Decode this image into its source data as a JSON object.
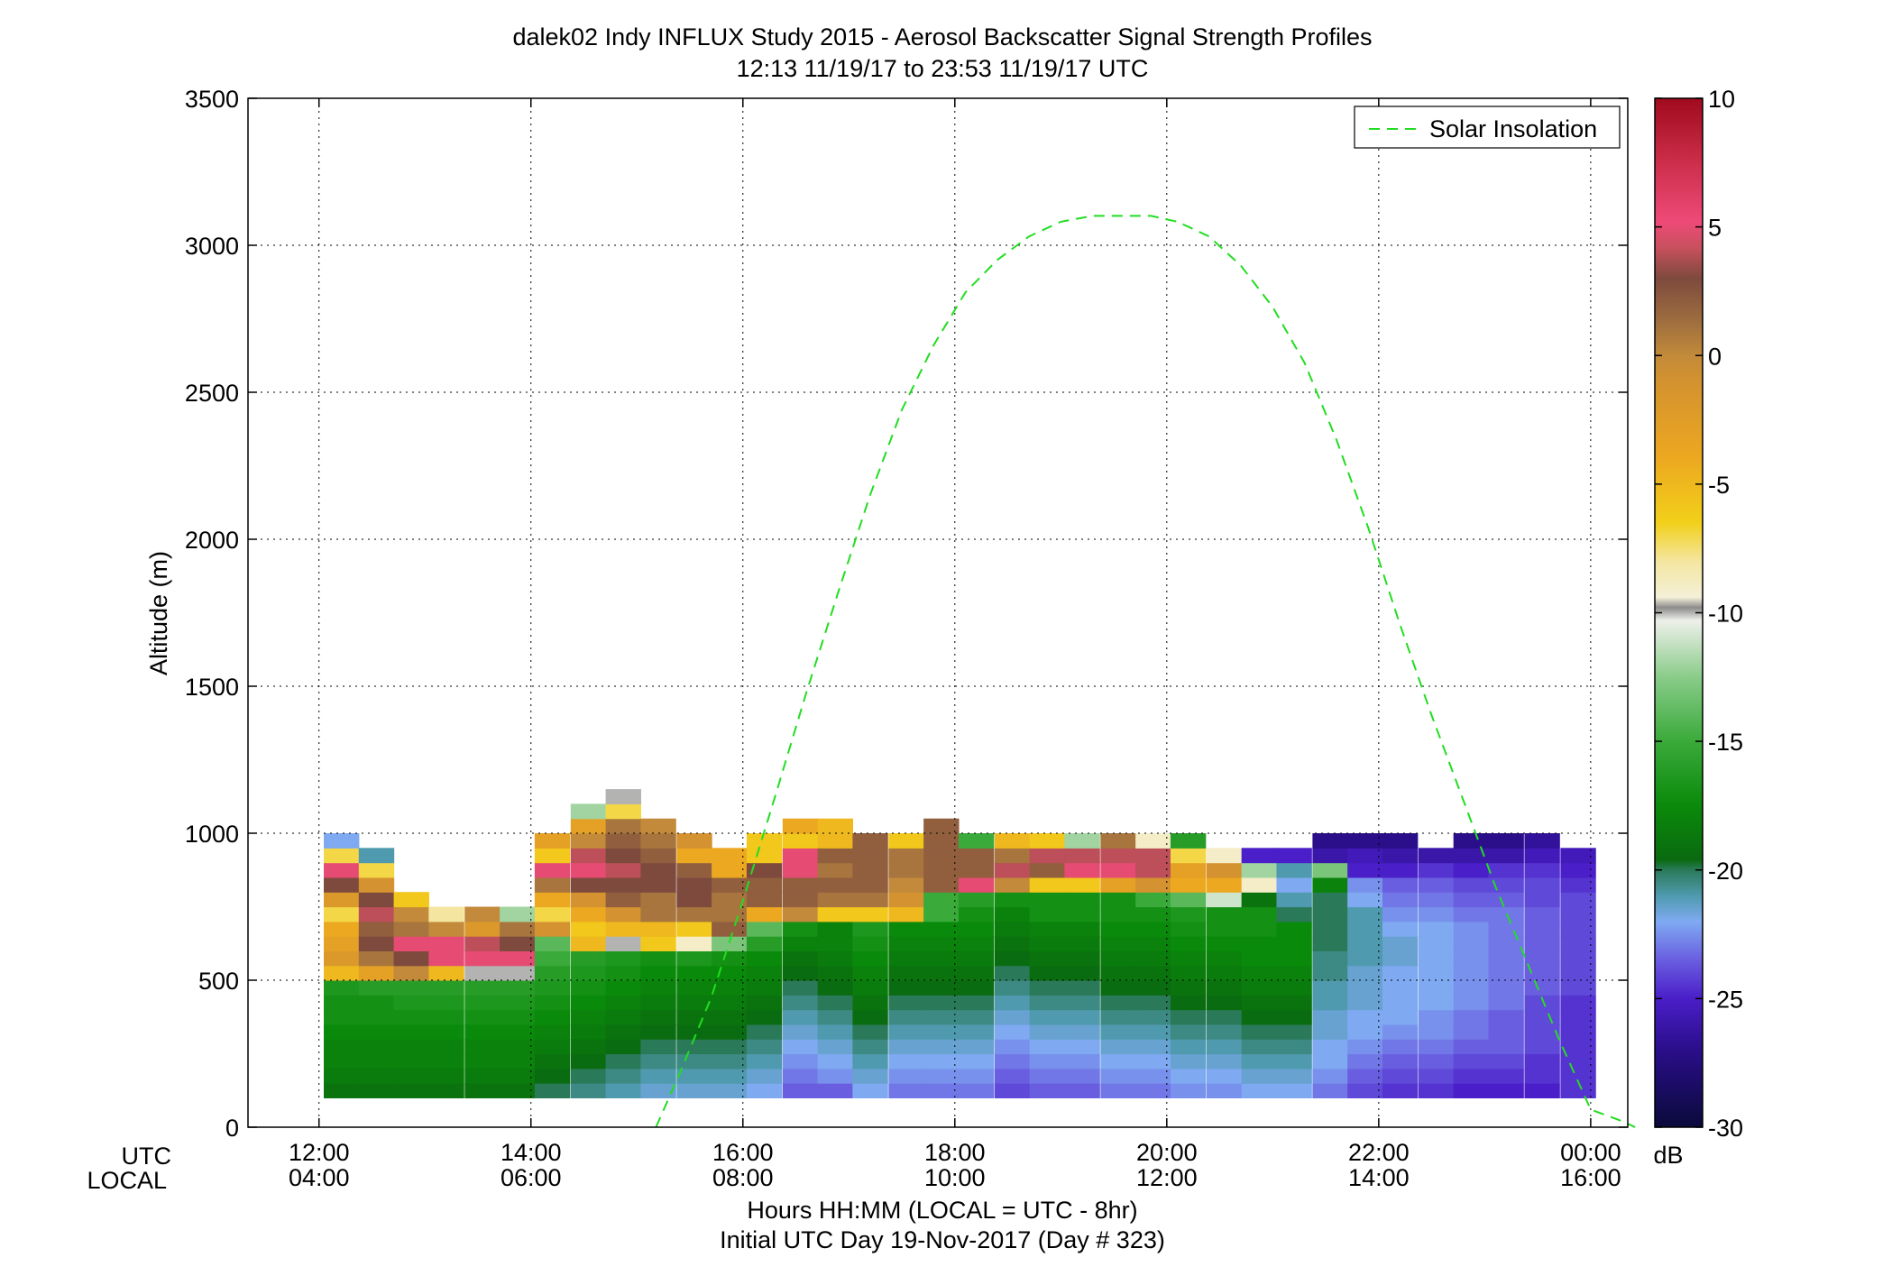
{
  "chart_data": {
    "type": "heatmap",
    "title": "dalek02 Indy INFLUX Study 2015 - Aerosol Backscatter Signal Strength Profiles",
    "subtitle": "12:13 11/19/17 to 23:53 11/19/17  UTC",
    "ylabel": "Altitude (m)",
    "xlabel": "Hours HH:MM  (LOCAL = UTC - 8hr)",
    "xlabel2": "Initial UTC Day 19-Nov-2017 (Day # 323)",
    "x_row_labels": [
      "UTC",
      "LOCAL"
    ],
    "grid": true,
    "x_range_hours": [
      11.33,
      24.35
    ],
    "ylim": [
      0,
      3500
    ],
    "y_ticks": [
      0,
      500,
      1000,
      1500,
      2000,
      2500,
      3000,
      3500
    ],
    "x_ticks": [
      {
        "hour": 12,
        "utc": "12:00",
        "local": "04:00"
      },
      {
        "hour": 14,
        "utc": "14:00",
        "local": "06:00"
      },
      {
        "hour": 16,
        "utc": "16:00",
        "local": "08:00"
      },
      {
        "hour": 18,
        "utc": "18:00",
        "local": "10:00"
      },
      {
        "hour": 20,
        "utc": "20:00",
        "local": "12:00"
      },
      {
        "hour": 22,
        "utc": "22:00",
        "local": "14:00"
      },
      {
        "hour": 24,
        "utc": "00:00",
        "local": "16:00"
      }
    ],
    "colorbar": {
      "label": "dB",
      "range": [
        -30,
        10
      ],
      "ticks": [
        -30,
        -25,
        -20,
        -15,
        -10,
        -5,
        0,
        5,
        10
      ],
      "tick_labels": [
        "-30",
        "-25",
        "-20",
        "-15",
        "-10",
        "-5",
        "0",
        "5",
        "10"
      ],
      "stops": [
        [
          -30,
          "#0a0a3a"
        ],
        [
          -27,
          "#2a0e8a"
        ],
        [
          -25,
          "#4a1ec8"
        ],
        [
          -23.5,
          "#6a5ee0"
        ],
        [
          -22,
          "#7faaf2"
        ],
        [
          -21,
          "#4f9aae"
        ],
        [
          -20,
          "#2a7a5a"
        ],
        [
          -19.6,
          "#0a6a10"
        ],
        [
          -17.5,
          "#0a8a0a"
        ],
        [
          -15,
          "#3aaa3a"
        ],
        [
          -12.5,
          "#8acc8a"
        ],
        [
          -10.3,
          "#eef0ea"
        ],
        [
          -9.8,
          "#8c8c8c"
        ],
        [
          -9.4,
          "#f4f0d8"
        ],
        [
          -8,
          "#f4e6a0"
        ],
        [
          -6.5,
          "#f2d01a"
        ],
        [
          -4,
          "#eca820"
        ],
        [
          -1,
          "#d49230"
        ],
        [
          0,
          "#c28a3a"
        ],
        [
          1.5,
          "#9a6a3e"
        ],
        [
          3,
          "#7e4a3e"
        ],
        [
          4.2,
          "#c8505e"
        ],
        [
          5.2,
          "#ee4a78"
        ],
        [
          7.5,
          "#cc2e4a"
        ],
        [
          10,
          "#a00a1e"
        ]
      ]
    },
    "time_bins_hours": [
      12.21,
      12.54,
      12.87,
      13.2,
      13.54,
      13.87,
      14.2,
      14.54,
      14.87,
      15.2,
      15.54,
      15.87,
      16.2,
      16.54,
      16.87,
      17.2,
      17.54,
      17.87,
      18.2,
      18.54,
      18.87,
      19.2,
      19.54,
      19.87,
      20.2,
      20.54,
      20.87,
      21.2,
      21.54,
      21.87,
      22.2,
      22.54,
      22.87,
      23.2,
      23.54,
      23.88
    ],
    "altitude_bin_bottoms_m": [
      100,
      150,
      200,
      250,
      300,
      350,
      400,
      450,
      500,
      550,
      600,
      650,
      700,
      750,
      800,
      850,
      900,
      950,
      1000,
      1050,
      1100
    ],
    "altitude_bin_height_m": 50,
    "signal_db": [
      [
        -19,
        -18.5,
        -18,
        -18,
        -17.5,
        -17,
        -17,
        -16.5,
        -5,
        -2,
        -3,
        -4,
        -7,
        -2,
        3,
        5,
        -7,
        -22,
        null,
        null,
        null
      ],
      [
        -19,
        -18.5,
        -18,
        -18,
        -17.5,
        -17,
        -17,
        -16,
        -3,
        1,
        3,
        2,
        4,
        3,
        -1,
        -7,
        -21,
        null,
        null,
        null,
        null
      ],
      [
        -19,
        -18.5,
        -18,
        -18,
        -17.5,
        -17,
        -16.5,
        -16,
        0,
        3,
        5,
        1,
        0,
        -6,
        null,
        null,
        null,
        null,
        null,
        null,
        null
      ],
      [
        -19,
        -18.5,
        -18,
        -18,
        -17.5,
        -17,
        -16.5,
        -16,
        -5,
        5,
        5,
        0,
        -8,
        null,
        null,
        null,
        null,
        null,
        null,
        null,
        null
      ],
      [
        -19,
        -18.5,
        -18,
        -18,
        -17.5,
        -17,
        -16.5,
        -16,
        -10,
        5,
        4,
        -2,
        0,
        null,
        null,
        null,
        null,
        null,
        null,
        null,
        null
      ],
      [
        -19,
        -18.5,
        -18,
        -18,
        -17.5,
        -17,
        -16.5,
        -16,
        -10,
        5,
        3,
        1,
        -12,
        null,
        null,
        null,
        null,
        null,
        null,
        null,
        null
      ],
      [
        -20,
        -19.5,
        -19,
        -18.5,
        -18,
        -17.5,
        -17,
        -16.5,
        -16,
        -15,
        -14,
        -1,
        -7,
        -4,
        1,
        5,
        -6,
        -3,
        null,
        null,
        null
      ],
      [
        -20.5,
        -20,
        -19.5,
        -19,
        -18.5,
        -18,
        -17.5,
        -17,
        -16.5,
        -16,
        -5,
        -6,
        -4,
        -1,
        3,
        5,
        4,
        0,
        -3,
        -12,
        null
      ],
      [
        -21,
        -20.5,
        -20,
        -19.5,
        -19,
        -18.5,
        -18,
        -17.5,
        -17,
        -16.5,
        -10,
        -5,
        -1,
        2,
        3,
        4,
        3,
        2,
        1,
        -7,
        -10
      ],
      [
        -21.5,
        -21,
        -20.5,
        -20,
        -19.5,
        -19,
        -18.5,
        -18,
        -17.5,
        -17,
        -6,
        -5,
        1,
        1,
        3,
        3,
        2,
        1,
        0,
        null,
        null
      ],
      [
        -21.5,
        -21,
        -20.5,
        -20,
        -19.5,
        -19,
        -18.5,
        -18,
        -17.5,
        -16.5,
        -9,
        -6,
        1,
        3,
        3,
        2,
        -4,
        -1,
        null,
        null,
        null
      ],
      [
        -21.5,
        -21,
        -20.5,
        -20,
        -19.5,
        -19,
        -18.5,
        -18,
        -17.5,
        -17,
        -13,
        2,
        1,
        1,
        2,
        -4,
        -4,
        null,
        null,
        null,
        null
      ],
      [
        -22,
        -21.5,
        -21,
        -20.5,
        -20,
        -19.5,
        -19,
        -18.5,
        -18,
        -17.5,
        -16,
        -14,
        -4,
        2,
        2,
        3,
        -6,
        -6,
        null,
        null,
        null
      ],
      [
        -23.5,
        -23,
        -22.5,
        -22,
        -21.5,
        -21,
        -20.5,
        -20,
        -19.5,
        -19,
        -18,
        -17,
        0,
        2,
        2,
        5,
        5,
        -6,
        -4,
        null,
        null
      ],
      [
        -23.5,
        -22.5,
        -22,
        -21.5,
        -21,
        -20.5,
        -20,
        -19.5,
        -19,
        -18.5,
        -18,
        -18,
        -6,
        1,
        2,
        1,
        2,
        -5,
        -5,
        null,
        null
      ],
      [
        -22,
        -21.5,
        -21,
        -20.5,
        -20,
        -19.5,
        -19,
        -18.5,
        -18,
        -17.5,
        -17,
        -16.5,
        -6,
        1,
        2,
        2,
        2,
        2,
        null,
        null,
        null
      ],
      [
        -23,
        -22.5,
        -22,
        -21.5,
        -21,
        -20.5,
        -20,
        -19.5,
        -19,
        -18.5,
        -18,
        -17.5,
        -5,
        -1,
        0,
        1,
        1,
        -6,
        null,
        null,
        null
      ],
      [
        -23,
        -22.5,
        -22,
        -21.5,
        -21,
        -20.5,
        -20,
        -19.5,
        -19,
        -18.5,
        -18,
        -17.5,
        -15,
        -15,
        2,
        2,
        2,
        2,
        2,
        null,
        null
      ],
      [
        -23,
        -22.5,
        -22,
        -21.5,
        -21,
        -20.5,
        -20,
        -19.5,
        -19,
        -18.5,
        -18,
        -17.5,
        -17,
        -16,
        5,
        2,
        2,
        -15,
        null,
        null,
        null
      ],
      [
        -24,
        -23.5,
        -23,
        -22.5,
        -22,
        -21.5,
        -21,
        -20.5,
        -20,
        -19.5,
        -19,
        -18.5,
        -18,
        -17,
        0,
        4,
        1,
        -5,
        null,
        null,
        null
      ],
      [
        -23.5,
        -23,
        -22.5,
        -22,
        -21.5,
        -21,
        -20.5,
        -20,
        -19.5,
        -19,
        -18.5,
        -18,
        -17,
        -17,
        -6,
        2,
        4,
        -6,
        null,
        null,
        null
      ],
      [
        -23.5,
        -23,
        -22.5,
        -22,
        -21.5,
        -21,
        -20.5,
        -20,
        -19.5,
        -19,
        -18.5,
        -18,
        -17,
        -17,
        -6,
        5,
        4,
        -12,
        null,
        null,
        null
      ],
      [
        -23,
        -22.5,
        -22,
        -21.5,
        -21,
        -20.5,
        -20,
        -19.5,
        -19,
        -18.5,
        -18,
        -17.5,
        -17,
        -17,
        -3,
        5,
        4,
        1,
        null,
        null,
        null
      ],
      [
        -23,
        -22.5,
        -22,
        -21.5,
        -21,
        -20.5,
        -20,
        -19.5,
        -19,
        -18.5,
        -18,
        -17.5,
        -17,
        -15,
        -1,
        4,
        4,
        -9,
        null,
        null,
        null
      ],
      [
        -22.5,
        -22,
        -21.5,
        -21,
        -20.5,
        -20,
        -19.5,
        -19,
        -18.5,
        -18,
        -17.5,
        -17,
        -16.5,
        -14,
        -4,
        -3,
        -7,
        -16,
        null,
        null,
        null
      ],
      [
        -22.5,
        -22,
        -21.5,
        -21,
        -20.5,
        -20,
        -19.5,
        -19,
        -18.5,
        -18,
        -17.5,
        -17,
        -17,
        -11,
        -4,
        -1,
        -9,
        null,
        null,
        null,
        null
      ],
      [
        -22,
        -21.5,
        -21,
        -20.5,
        -20,
        -19.5,
        -19,
        -18.5,
        -18,
        -17.5,
        -17.5,
        -17,
        -17,
        -19,
        -9,
        -12,
        -25,
        null,
        null,
        null,
        null
      ],
      [
        -22,
        -21.5,
        -21,
        -20.5,
        -20,
        -19.5,
        -19,
        -18.5,
        -18,
        -17.5,
        -17.5,
        -17.5,
        -20,
        -21,
        -22,
        -21,
        -25,
        null,
        null,
        null,
        null
      ],
      [
        -23,
        -22.5,
        -22,
        -22,
        -21.5,
        -21.5,
        -21,
        -21,
        -20.5,
        -20.5,
        -20,
        -20,
        -20,
        -20,
        -18,
        -13,
        -26,
        -27,
        null,
        null,
        null
      ],
      [
        -24,
        -23.5,
        -23,
        -22.5,
        -22,
        -22,
        -21.5,
        -21.5,
        -21.5,
        -21,
        -21,
        -21,
        -21,
        -22,
        -22.5,
        -25,
        -25.5,
        -27,
        null,
        null,
        null
      ],
      [
        -24.5,
        -24,
        -23.5,
        -23,
        -22.5,
        -22,
        -22,
        -22,
        -22,
        -21.5,
        -21.5,
        -22,
        -22.5,
        -23,
        -23.5,
        -25,
        -26,
        -27,
        null,
        null,
        null
      ],
      [
        -24.5,
        -24,
        -23.5,
        -23,
        -22.5,
        -22.5,
        -22,
        -22,
        -22,
        -22,
        -22,
        -22,
        -22.5,
        -23,
        -23.5,
        -24.5,
        -26,
        null,
        null,
        null,
        null
      ],
      [
        -25,
        -24.5,
        -24,
        -23.5,
        -23,
        -23,
        -22.5,
        -22.5,
        -22.5,
        -22.5,
        -22.5,
        -22.5,
        -23,
        -23.5,
        -24,
        -25,
        -26,
        -27,
        null,
        null,
        null
      ],
      [
        -25,
        -24.5,
        -24,
        -23.5,
        -23.5,
        -23.5,
        -23,
        -23,
        -23,
        -23,
        -23,
        -23,
        -23,
        -23.5,
        -24,
        -24.5,
        -26,
        -27,
        null,
        null,
        null
      ],
      [
        -25,
        -24.5,
        -24.5,
        -24,
        -24,
        -24,
        -24,
        -23.5,
        -23.5,
        -23.5,
        -23.5,
        -23.5,
        -23.5,
        -24,
        -24,
        -24.5,
        -25.5,
        -26.5,
        null,
        null,
        null
      ],
      [
        -24.5,
        -24.5,
        -24.5,
        -24.5,
        -24.5,
        -24.5,
        -24.5,
        -24,
        -24,
        -24,
        -24,
        -24,
        -24,
        -24,
        -24.5,
        -25,
        -25.5,
        null,
        null,
        null,
        null
      ]
    ],
    "series": [
      {
        "name": "Solar Insolation",
        "style": "dashed",
        "color": "#22dd22",
        "x_hours": [
          15.18,
          15.4,
          15.7,
          16.0,
          16.3,
          16.6,
          16.9,
          17.2,
          17.5,
          17.8,
          18.1,
          18.4,
          18.7,
          19.0,
          19.3,
          19.6,
          19.85,
          20.1,
          20.4,
          20.7,
          21.0,
          21.3,
          21.6,
          21.9,
          22.2,
          22.5,
          22.8,
          23.1,
          23.4,
          23.7,
          24.0,
          24.3,
          24.42
        ],
        "y_m": [
          0,
          180,
          440,
          770,
          1120,
          1480,
          1820,
          2150,
          2440,
          2660,
          2840,
          2950,
          3030,
          3080,
          3100,
          3100,
          3100,
          3080,
          3030,
          2930,
          2790,
          2600,
          2340,
          2040,
          1710,
          1400,
          1110,
          820,
          560,
          300,
          60,
          20,
          0
        ]
      }
    ],
    "legend": {
      "position": "top-right",
      "entries": [
        "Solar Insolation"
      ]
    }
  }
}
